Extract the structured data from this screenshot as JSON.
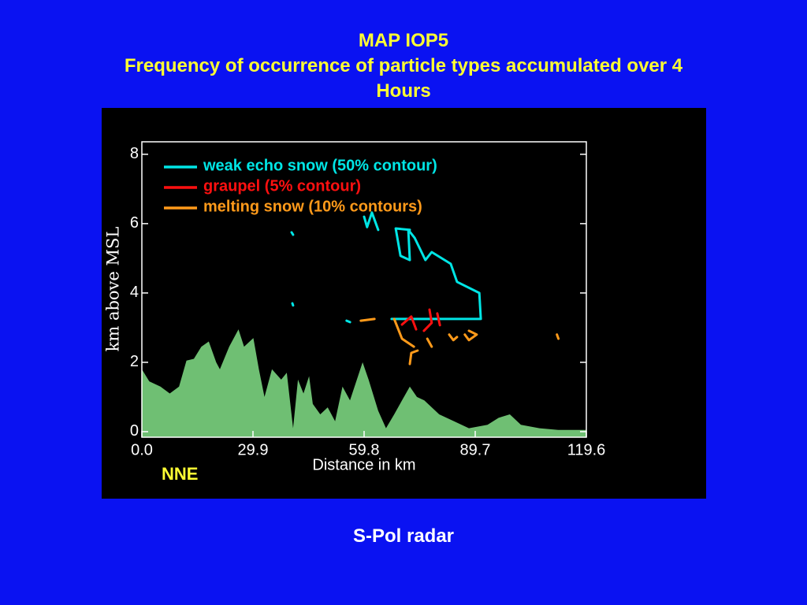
{
  "chart_data": {
    "type": "line",
    "title": "MAP IOP5",
    "subtitle": "Frequency of occurrence of particle types accumulated over 4 Hours",
    "xlabel": "Distance in km",
    "ylabel": "km above MSL",
    "annotation": "NNE",
    "footer": "S-Pol radar",
    "xlim": [
      0,
      119.6
    ],
    "xticks": [
      {
        "value": 0,
        "label": "0.0"
      },
      29.9,
      59.8,
      89.7,
      119.6
    ],
    "ylim": [
      -0.16,
      8.36
    ],
    "yticks": [
      0,
      2,
      4,
      6,
      8
    ],
    "grid": false,
    "legend": "upper-left",
    "series": [
      {
        "color": "#6fbf73",
        "style": "area",
        "x": [
          0,
          2,
          5,
          7.5,
          10,
          12,
          14,
          16,
          18,
          20,
          21,
          23.5,
          26,
          27.5,
          30,
          31.5,
          33,
          35,
          37.5,
          39,
          40.7,
          42,
          43.5,
          45,
          46,
          48,
          50,
          52,
          54,
          56,
          59.4,
          61,
          63.6,
          65.7,
          67.9,
          70,
          72.1,
          74,
          76,
          80,
          84,
          88,
          93,
          96,
          99,
          102,
          107,
          112,
          119.6
        ],
        "values": [
          1.8,
          1.45,
          1.3,
          1.1,
          1.3,
          2.05,
          2.1,
          2.45,
          2.6,
          2.0,
          1.8,
          2.45,
          2.95,
          2.45,
          2.7,
          1.8,
          1.0,
          1.8,
          1.5,
          1.7,
          0.1,
          1.5,
          1.1,
          1.6,
          0.8,
          0.5,
          0.7,
          0.3,
          1.3,
          0.9,
          2.0,
          1.5,
          0.6,
          0.1,
          0.5,
          0.9,
          1.3,
          1.0,
          0.9,
          0.5,
          0.3,
          0.1,
          0.2,
          0.4,
          0.5,
          0.2,
          0.1,
          0.05,
          0.05
        ]
      },
      {
        "name": "weak echo snow (50% contour)",
        "color": "#00e5e5",
        "x": [
          67.2,
          91.2,
          90.8,
          84.8,
          83.1,
          78.0,
          76.3,
          73.4,
          71.7,
          72.1,
          69.6,
          68.3,
          72.1,
          null,
          59.8,
          60.6,
          61.9,
          63.6,
          null,
          40.3,
          40.7,
          null,
          40.5,
          40.7,
          null,
          55.1,
          56.0
        ],
        "values": [
          3.25,
          3.25,
          4.0,
          4.32,
          4.84,
          5.18,
          4.95,
          5.59,
          5.82,
          4.95,
          5.07,
          5.86,
          5.82,
          null,
          6.2,
          5.9,
          6.32,
          5.82,
          null,
          5.75,
          5.68,
          null,
          3.7,
          3.64,
          null,
          3.2,
          3.16
        ]
      },
      {
        "name": "graupel (5% contour)",
        "color": "#ff1010",
        "x": [
          70.0,
          72.5,
          73.8,
          null,
          77.4,
          78.0,
          75.9,
          null,
          79.5,
          80.2
        ],
        "values": [
          3.09,
          3.32,
          2.95,
          null,
          3.52,
          3.14,
          2.91,
          null,
          3.41,
          3.07
        ]
      },
      {
        "name": "melting snow (10% contours)",
        "color": "#ff9a1a",
        "x": [
          58.9,
          62.6,
          null,
          67.9,
          70.0,
          73.2,
          null,
          72.1,
          72.5,
          74.2,
          null,
          76.8,
          78.0,
          null,
          82.7,
          83.8,
          84.8,
          null,
          88.0,
          90.1,
          88.0,
          86.9,
          null,
          111.7,
          112.1
        ],
        "values": [
          3.2,
          3.25,
          null,
          3.25,
          2.68,
          2.45,
          null,
          1.95,
          2.27,
          2.34,
          null,
          2.68,
          2.45,
          null,
          2.8,
          2.64,
          2.73,
          null,
          2.91,
          2.8,
          2.64,
          2.8,
          null,
          2.8,
          2.68
        ]
      }
    ]
  }
}
